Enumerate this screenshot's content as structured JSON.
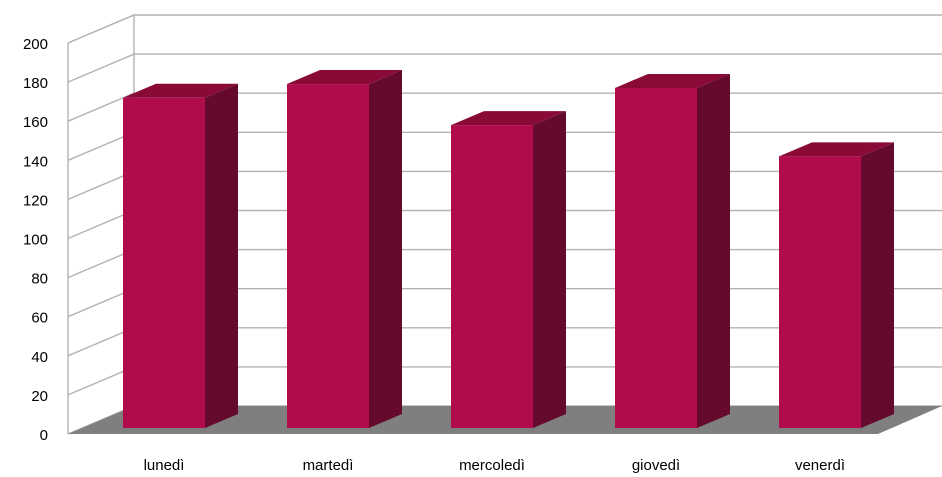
{
  "chart_data": {
    "type": "bar",
    "style": "3d",
    "categories": [
      "lunedì",
      "martedì",
      "mercoledì",
      "giovedì",
      "venerdì"
    ],
    "values": [
      172,
      179,
      158,
      177,
      142
    ],
    "ylim": [
      0,
      200
    ],
    "yticks": [
      0,
      20,
      40,
      60,
      80,
      100,
      120,
      140,
      160,
      180,
      200
    ],
    "grid": true,
    "legend": "none",
    "title": "",
    "xlabel": "",
    "ylabel": ""
  },
  "colors": {
    "bar_front": "#b00b4a",
    "bar_side": "#650a2c",
    "bar_top": "#8a0a37",
    "floor": "#7f7f7f",
    "gridline": "#b3b3b3",
    "axis_text": "#000000"
  }
}
